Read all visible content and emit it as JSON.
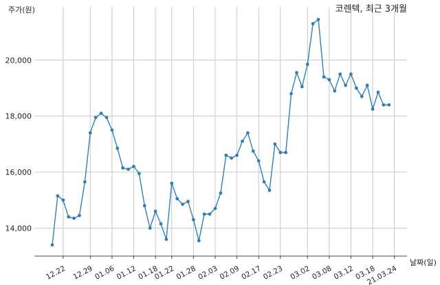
{
  "chart_data": {
    "type": "line",
    "title": "코렌텍, 최근 3개월",
    "ylabel": "주가(원)",
    "xlabel": "날짜(일)",
    "ylim": [
      13000,
      21900
    ],
    "yticks": [
      14000,
      16000,
      18000,
      20000
    ],
    "ytick_labels": [
      "14,000",
      "16,000",
      "18,000",
      "20,000"
    ],
    "xtick_labels": [
      "12.22",
      "12.29",
      "01.06",
      "01.12",
      "01.18",
      "01.22",
      "01.28",
      "02.03",
      "02.09",
      "02.17",
      "02.23",
      "03.02",
      "03.08",
      "03.12",
      "03.18",
      "21.03.24"
    ],
    "xtick_positions": [
      2,
      7,
      11,
      15,
      19,
      22,
      26,
      30,
      34,
      38,
      42,
      47,
      51,
      55,
      59,
      63
    ],
    "grid": true,
    "color": "#2f7fb4",
    "series": [
      {
        "values": [
          13400,
          15150,
          15000,
          14400,
          14350,
          14450,
          15650,
          17400,
          17950,
          18100,
          17950,
          17500,
          16850,
          16150,
          16100,
          16200,
          15950,
          14800,
          14000,
          14600,
          14150,
          13600,
          15600,
          15050,
          14850,
          14950,
          14300,
          13550,
          14500,
          14500,
          14700,
          15250,
          16600,
          16500,
          16600,
          17100,
          17400,
          16750,
          16400,
          15650,
          15350,
          17000,
          16700,
          16700,
          18800,
          19550,
          19050,
          19850,
          21300,
          21450,
          19400,
          19300,
          18900,
          19500,
          19100,
          19500,
          19000,
          18700,
          19100,
          18250,
          18850,
          18400,
          18400
        ]
      }
    ]
  }
}
